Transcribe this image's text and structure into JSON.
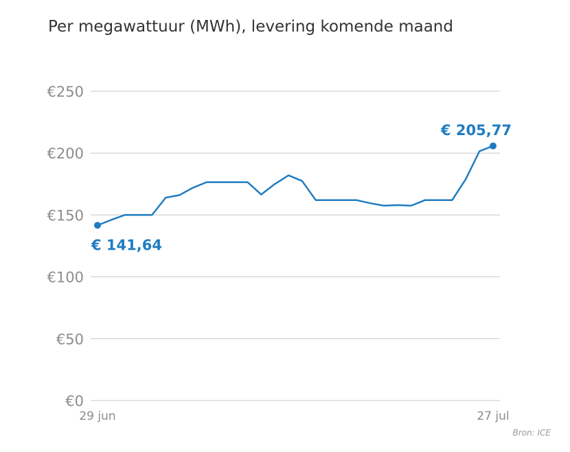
{
  "title": "Per megawattuur (MWh), levering komende maand",
  "source": "Bron: ICE",
  "colors": {
    "line": "#1f7cc1",
    "grid": "#c8c8c8",
    "axis_text": "#8c8c8c",
    "title": "#333333"
  },
  "chart_data": {
    "type": "line",
    "title": "Per megawattuur (MWh), levering komende maand",
    "xlabel": "",
    "ylabel": "",
    "x_tick_labels": [
      "29 jun",
      "27 jul"
    ],
    "y_ticks": [
      0,
      50,
      100,
      150,
      200,
      250
    ],
    "y_tick_labels": [
      "€0",
      "€50",
      "€100",
      "€150",
      "€200",
      "€250"
    ],
    "ylim": [
      0,
      250
    ],
    "grid": "horizontal",
    "series": [
      {
        "values": [
          141.64,
          146,
          150,
          150,
          150,
          164,
          166,
          172,
          176.5,
          176.5,
          176.5,
          176.5,
          166.5,
          175,
          182,
          177.5,
          162,
          162,
          162,
          162,
          159.5,
          157.5,
          158,
          157.5,
          162,
          162,
          162,
          179,
          201.5,
          205.77
        ]
      }
    ],
    "annotations": [
      {
        "text": "€ 141,64",
        "point_index": 0,
        "placement": "below"
      },
      {
        "text": "€ 205,77",
        "point_index": 29,
        "placement": "above"
      }
    ]
  }
}
